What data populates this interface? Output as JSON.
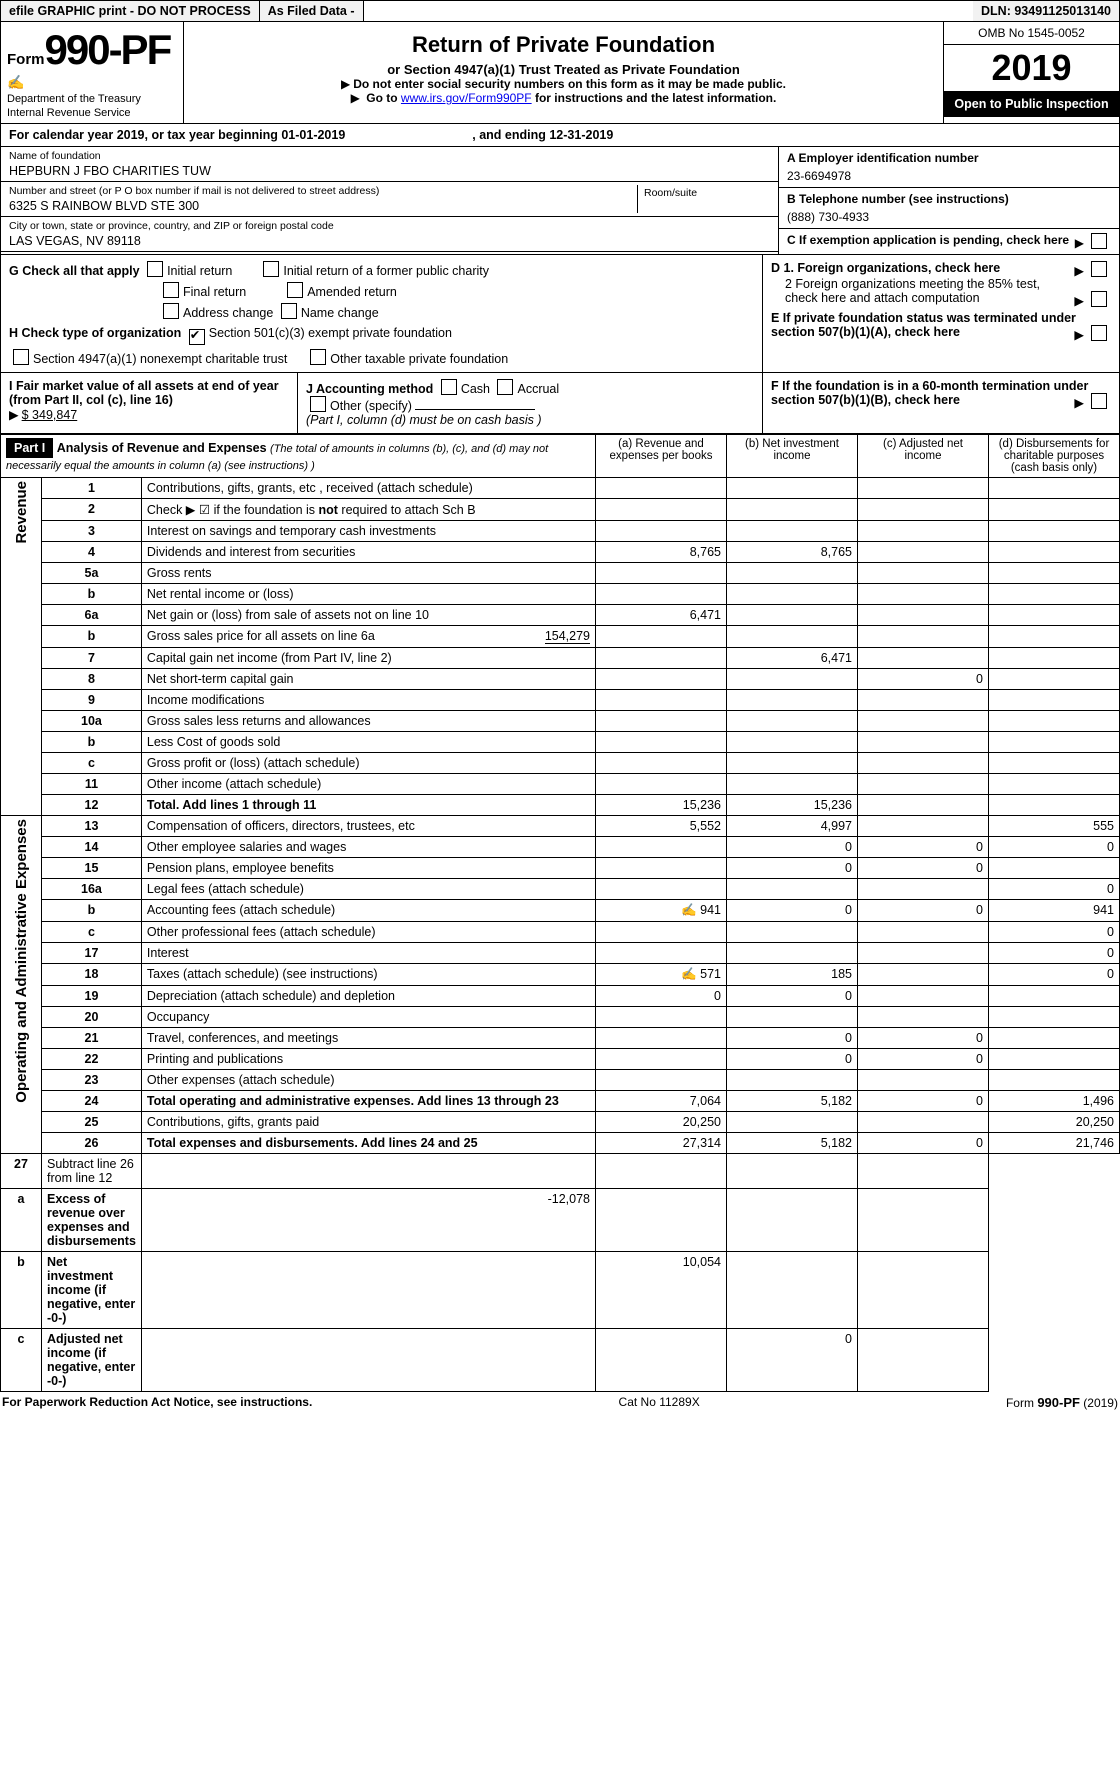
{
  "topbar": {
    "efile": "efile GRAPHIC print - DO NOT PROCESS",
    "asfiled": "As Filed Data -",
    "dln_label": "DLN:",
    "dln": "93491125013140"
  },
  "header": {
    "form_prefix": "Form",
    "form_num": "990-PF",
    "dept1": "Department of the Treasury",
    "dept2": "Internal Revenue Service",
    "title": "Return of Private Foundation",
    "subtitle": "or Section 4947(a)(1) Trust Treated as Private Foundation",
    "instr1": "Do not enter social security numbers on this form as it may be made public.",
    "instr2_pre": "Go to ",
    "instr2_link": "www.irs.gov/Form990PF",
    "instr2_post": " for instructions and the latest information.",
    "omb": "OMB No 1545-0052",
    "year": "2019",
    "open_pub": "Open to Public Inspection"
  },
  "calyear": {
    "pre": "For calendar year 2019, or tax year beginning ",
    "begin": "01-01-2019",
    "mid": ", and ending ",
    "end": "12-31-2019"
  },
  "id": {
    "name_lbl": "Name of foundation",
    "name": "HEPBURN J FBO CHARITIES TUW",
    "addr_lbl": "Number and street (or P O  box number if mail is not delivered to street address)",
    "room_lbl": "Room/suite",
    "addr": "6325 S RAINBOW BLVD STE 300",
    "city_lbl": "City or town, state or province, country, and ZIP or foreign postal code",
    "city": "LAS VEGAS, NV  89118",
    "a_lbl": "A Employer identification number",
    "a_val": "23-6694978",
    "b_lbl": "B Telephone number (see instructions)",
    "b_val": "(888) 730-4933",
    "c_lbl": "C If exemption application is pending, check here"
  },
  "g": {
    "g_lbl": "G Check all that apply",
    "initial": "Initial return",
    "initial_former": "Initial return of a former public charity",
    "final": "Final return",
    "amended": "Amended return",
    "address": "Address change",
    "name": "Name change",
    "h_lbl": "H Check type of organization",
    "h_501c3": "Section 501(c)(3) exempt private foundation",
    "h_4947": "Section 4947(a)(1) nonexempt charitable trust",
    "h_other": "Other taxable private foundation",
    "d1": "D 1. Foreign organizations, check here",
    "d2": "2 Foreign organizations meeting the 85% test, check here and attach computation",
    "e": "E  If private foundation status was terminated under section 507(b)(1)(A), check here"
  },
  "ij": {
    "i_lbl": "I Fair market value of all assets at end of year (from Part II, col  (c), line 16)",
    "i_val": "$  349,847",
    "j_lbl": "J Accounting method",
    "cash": "Cash",
    "accrual": "Accrual",
    "other": "Other (specify)",
    "j_note": "(Part I, column (d) must be on cash basis )",
    "f": "F  If the foundation is in a 60-month termination under section 507(b)(1)(B), check here"
  },
  "part1": {
    "title": "Part I",
    "heading": "Analysis of Revenue and Expenses",
    "note": "(The total of amounts in columns (b), (c), and (d) may not necessarily equal the amounts in column (a) (see instructions) )",
    "col_a": "(a) Revenue and expenses per books",
    "col_b": "(b) Net investment income",
    "col_c": "(c) Adjusted net income",
    "col_d": "(d) Disbursements for charitable purposes (cash basis only)"
  },
  "sections": {
    "rev": "Revenue",
    "exp": "Operating and Administrative Expenses"
  },
  "rows": [
    {
      "n": "1",
      "d": "Contributions, gifts, grants, etc , received (attach schedule)"
    },
    {
      "n": "2",
      "d": "Check ▶ ☑ if the foundation is not required to attach Sch  B",
      "d_dots": true,
      "not_bold": "not"
    },
    {
      "n": "3",
      "d": "Interest on savings and temporary cash investments"
    },
    {
      "n": "4",
      "d": "Dividends and interest from securities",
      "a": "8,765",
      "b": "8,765"
    },
    {
      "n": "5a",
      "d": "Gross rents",
      "d_dots": true
    },
    {
      "n": "b",
      "d": "Net rental income or (loss)"
    },
    {
      "n": "6a",
      "d": "Net gain or (loss) from sale of assets not on line 10",
      "a": "6,471"
    },
    {
      "n": "b",
      "d": "Gross sales price for all assets on line 6a",
      "extra": "154,279"
    },
    {
      "n": "7",
      "d": "Capital gain net income (from Part IV, line 2)",
      "b": "6,471"
    },
    {
      "n": "8",
      "d": "Net short-term capital gain",
      "c": "0"
    },
    {
      "n": "9",
      "d": "Income modifications",
      "d_dots": true
    },
    {
      "n": "10a",
      "d": "Gross sales less returns and allowances"
    },
    {
      "n": "b",
      "d": "Less  Cost of goods sold"
    },
    {
      "n": "c",
      "d": "Gross profit or (loss) (attach schedule)"
    },
    {
      "n": "11",
      "d": "Other income (attach schedule)"
    },
    {
      "n": "12",
      "d": "Total. Add lines 1 through 11",
      "bold": true,
      "a": "15,236",
      "b": "15,236"
    }
  ],
  "exp_rows": [
    {
      "n": "13",
      "d": "Compensation of officers, directors, trustees, etc",
      "a": "5,552",
      "b": "4,997",
      "dd": "555"
    },
    {
      "n": "14",
      "d": "Other employee salaries and wages",
      "b": "0",
      "c": "0",
      "dd": "0"
    },
    {
      "n": "15",
      "d": "Pension plans, employee benefits",
      "b": "0",
      "c": "0"
    },
    {
      "n": "16a",
      "d": "Legal fees (attach schedule)",
      "dd": "0"
    },
    {
      "n": "b",
      "d": "Accounting fees (attach schedule)",
      "icon": true,
      "a": "941",
      "b": "0",
      "c": "0",
      "dd": "941"
    },
    {
      "n": "c",
      "d": "Other professional fees (attach schedule)",
      "dd": "0"
    },
    {
      "n": "17",
      "d": "Interest",
      "dd": "0"
    },
    {
      "n": "18",
      "d": "Taxes (attach schedule) (see instructions)",
      "icon": true,
      "a": "571",
      "b": "185",
      "dd": "0"
    },
    {
      "n": "19",
      "d": "Depreciation (attach schedule) and depletion",
      "a": "0",
      "b": "0"
    },
    {
      "n": "20",
      "d": "Occupancy"
    },
    {
      "n": "21",
      "d": "Travel, conferences, and meetings",
      "b": "0",
      "c": "0"
    },
    {
      "n": "22",
      "d": "Printing and publications",
      "b": "0",
      "c": "0"
    },
    {
      "n": "23",
      "d": "Other expenses (attach schedule)"
    },
    {
      "n": "24",
      "d": "Total operating and administrative expenses. Add lines 13 through 23",
      "bold": true,
      "a": "7,064",
      "b": "5,182",
      "c": "0",
      "dd": "1,496"
    },
    {
      "n": "25",
      "d": "Contributions, gifts, grants paid",
      "a": "20,250",
      "dd": "20,250"
    },
    {
      "n": "26",
      "d": "Total expenses and disbursements. Add lines 24 and 25",
      "bold": true,
      "a": "27,314",
      "b": "5,182",
      "c": "0",
      "dd": "21,746"
    }
  ],
  "net_rows": [
    {
      "n": "27",
      "d": "Subtract line 26 from line 12"
    },
    {
      "n": "a",
      "d": "Excess of revenue over expenses and disbursements",
      "bold": true,
      "a": "-12,078"
    },
    {
      "n": "b",
      "d": "Net investment income (if negative, enter -0-)",
      "bold": true,
      "b": "10,054"
    },
    {
      "n": "c",
      "d": "Adjusted net income (if negative, enter -0-)",
      "bold": true,
      "c": "0"
    }
  ],
  "footer": {
    "left": "For Paperwork Reduction Act Notice, see instructions.",
    "mid": "Cat  No  11289X",
    "right": "Form 990-PF (2019)"
  }
}
